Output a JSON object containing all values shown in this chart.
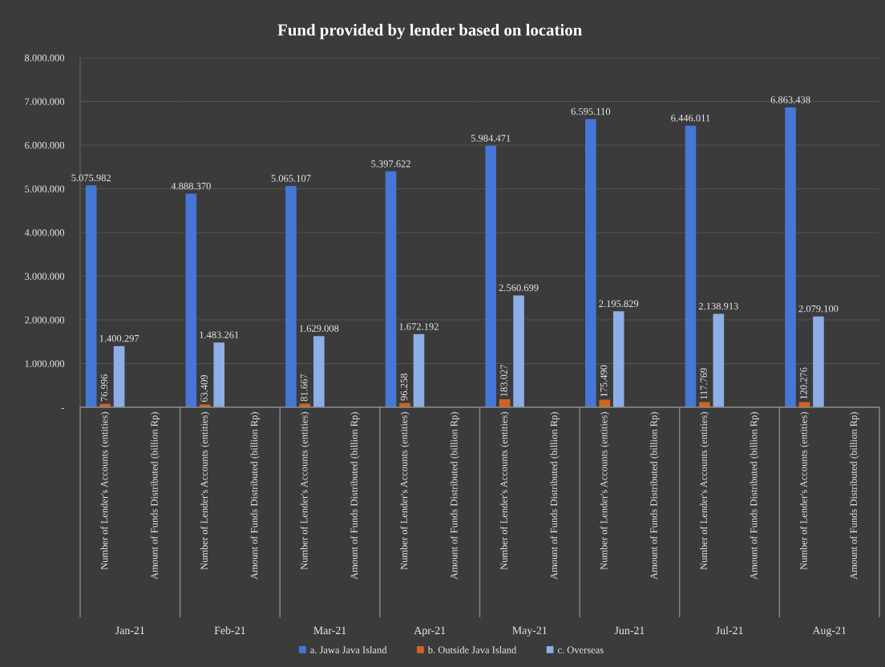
{
  "chart_data": [
    {
      "type": "bar",
      "legend": "bottom",
      "grid": "y",
      "xlabel": "Jan-21",
      "categories": [
        "Number of Lender's Accounts (entities)",
        "Amount of Funds Distributed (billion Rp)"
      ],
      "ylim": [
        0,
        8000000
      ],
      "yticks": [
        {
          "value": 0,
          "label": "-"
        },
        {
          "value": 1000000,
          "label": "1.000.000"
        },
        {
          "value": 2000000,
          "label": "2.000.000"
        },
        {
          "value": 3000000,
          "label": "3.000.000"
        },
        {
          "value": 4000000,
          "label": "4.000.000"
        },
        {
          "value": 5000000,
          "label": "5.000.000"
        },
        {
          "value": 6000000,
          "label": "6.000.000"
        },
        {
          "value": 7000000,
          "label": "7.000.000"
        },
        {
          "value": 8000000,
          "label": "8.000.000"
        }
      ],
      "series": [
        {
          "name": "a. Jawa Java Island",
          "color": "#4677d6",
          "values": [
            5075982,
            null
          ],
          "value_labels": [
            "5.075.982",
            null
          ]
        },
        {
          "name": "b. Outside Java Island",
          "color": "#d2631f",
          "values": [
            76996,
            null
          ],
          "value_labels": [
            "76.996",
            null
          ]
        },
        {
          "name": "c. Overseas",
          "color": "#8eaee6",
          "values": [
            1400297,
            null
          ],
          "value_labels": [
            "1.400.297",
            null
          ]
        }
      ]
    },
    {
      "type": "bar",
      "tick_labels": "x",
      "grid": "y",
      "xlabel": "Feb-21",
      "categories": [
        "Number of Lender's Accounts (entities)",
        "Amount of Funds Distributed (billion Rp)"
      ],
      "ylim": [
        0,
        8000000
      ],
      "yticks": [
        0,
        1000000,
        2000000,
        3000000,
        4000000,
        5000000,
        6000000,
        7000000,
        8000000
      ],
      "series": [
        {
          "color": "#4677d6",
          "values": [
            4888370,
            null
          ],
          "value_labels": [
            "4.888.370",
            null
          ]
        },
        {
          "color": "#d2631f",
          "values": [
            63409,
            null
          ],
          "value_labels": [
            "63.409",
            null
          ]
        },
        {
          "color": "#8eaee6",
          "values": [
            1483261,
            null
          ],
          "value_labels": [
            "1.483.261",
            null
          ]
        }
      ]
    },
    {
      "type": "bar",
      "tick_labels": "x",
      "grid": "y",
      "xlabel": "Mar-21",
      "categories": [
        "Number of Lender's Accounts (entities)",
        "Amount of Funds Distributed (billion Rp)"
      ],
      "ylim": [
        0,
        8000000
      ],
      "yticks": [
        0,
        1000000,
        2000000,
        3000000,
        4000000,
        5000000,
        6000000,
        7000000,
        8000000
      ],
      "series": [
        {
          "color": "#4677d6",
          "values": [
            5065107,
            null
          ],
          "value_labels": [
            "5.065.107",
            null
          ]
        },
        {
          "color": "#d2631f",
          "values": [
            81667,
            null
          ],
          "value_labels": [
            "81.667",
            null
          ]
        },
        {
          "color": "#8eaee6",
          "values": [
            1629008,
            null
          ],
          "value_labels": [
            "1.629.008",
            null
          ]
        }
      ]
    },
    {
      "type": "bar",
      "title": "Fund provided by lender based on location",
      "tick_labels": "x",
      "grid": "y",
      "xlabel": "Apr-21",
      "categories": [
        "Number of Lender's Accounts (entities)",
        "Amount of Funds Distributed (billion Rp)"
      ],
      "ylim": [
        0,
        8000000
      ],
      "yticks": [
        0,
        1000000,
        2000000,
        3000000,
        4000000,
        5000000,
        6000000,
        7000000,
        8000000
      ],
      "series": [
        {
          "color": "#4677d6",
          "values": [
            5397622,
            null
          ],
          "value_labels": [
            "5.397.622",
            null
          ]
        },
        {
          "color": "#d2631f",
          "values": [
            96258,
            null
          ],
          "value_labels": [
            "96.258",
            null
          ]
        },
        {
          "color": "#8eaee6",
          "values": [
            1672192,
            null
          ],
          "value_labels": [
            "1.672.192",
            null
          ]
        }
      ]
    },
    {
      "type": "bar",
      "tick_labels": "x",
      "grid": "y",
      "xlabel": "May-21",
      "categories": [
        "Number of Lender's Accounts (entities)",
        "Amount of Funds Distributed (billion Rp)"
      ],
      "ylim": [
        0,
        8000000
      ],
      "yticks": [
        0,
        1000000,
        2000000,
        3000000,
        4000000,
        5000000,
        6000000,
        7000000,
        8000000
      ],
      "series": [
        {
          "color": "#4677d6",
          "values": [
            5984471,
            null
          ],
          "value_labels": [
            "5.984.471",
            null
          ]
        },
        {
          "color": "#d2631f",
          "values": [
            183027,
            null
          ],
          "value_labels": [
            "183.027",
            null
          ]
        },
        {
          "color": "#8eaee6",
          "values": [
            2560699,
            null
          ],
          "value_labels": [
            "2.560.699",
            null
          ]
        }
      ]
    },
    {
      "type": "bar",
      "tick_labels": "x",
      "grid": "y",
      "xlabel": "Jun-21",
      "categories": [
        "Number of Lender's Accounts (entities)",
        "Amount of Funds Distributed (billion Rp)"
      ],
      "ylim": [
        0,
        8000000
      ],
      "yticks": [
        0,
        1000000,
        2000000,
        3000000,
        4000000,
        5000000,
        6000000,
        7000000,
        8000000
      ],
      "series": [
        {
          "color": "#4677d6",
          "values": [
            6595110,
            null
          ],
          "value_labels": [
            "6.595.110",
            null
          ]
        },
        {
          "color": "#d2631f",
          "values": [
            175490,
            null
          ],
          "value_labels": [
            "175.490",
            null
          ]
        },
        {
          "color": "#8eaee6",
          "values": [
            2195829,
            null
          ],
          "value_labels": [
            "2.195.829",
            null
          ]
        }
      ]
    },
    {
      "type": "bar",
      "tick_labels": "x",
      "grid": "y",
      "xlabel": "Jul-21",
      "categories": [
        "Number of Lender's Accounts (entities)",
        "Amount of Funds Distributed (billion Rp)"
      ],
      "ylim": [
        0,
        8000000
      ],
      "yticks": [
        0,
        1000000,
        2000000,
        3000000,
        4000000,
        5000000,
        6000000,
        7000000,
        8000000
      ],
      "series": [
        {
          "color": "#4677d6",
          "values": [
            6446011,
            null
          ],
          "value_labels": [
            "6.446.011",
            null
          ]
        },
        {
          "color": "#d2631f",
          "values": [
            117769,
            null
          ],
          "value_labels": [
            "117.769",
            null
          ]
        },
        {
          "color": "#8eaee6",
          "values": [
            2138913,
            null
          ],
          "value_labels": [
            "2.138.913",
            null
          ]
        }
      ]
    },
    {
      "type": "bar",
      "tick_labels": "x",
      "grid": "y",
      "xlabel": "Aug-21",
      "categories": [
        "Number of Lender's Accounts (entities)",
        "Amount of Funds Distributed (billion Rp)"
      ],
      "ylim": [
        0,
        8000000
      ],
      "yticks": [
        0,
        1000000,
        2000000,
        3000000,
        4000000,
        5000000,
        6000000,
        7000000,
        8000000
      ],
      "series": [
        {
          "color": "#4677d6",
          "values": [
            6863438,
            null
          ],
          "value_labels": [
            "6.863.438",
            null
          ]
        },
        {
          "color": "#d2631f",
          "values": [
            120276,
            null
          ],
          "value_labels": [
            "120.276",
            null
          ]
        },
        {
          "color": "#8eaee6",
          "values": [
            2079100,
            null
          ],
          "value_labels": [
            "2.079.100",
            null
          ]
        }
      ]
    }
  ]
}
